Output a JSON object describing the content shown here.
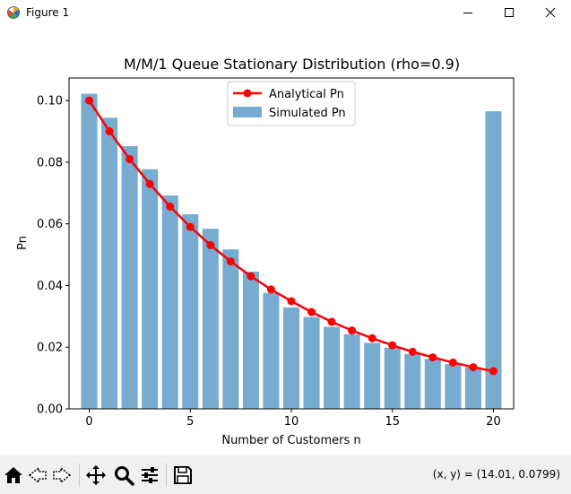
{
  "window": {
    "title": "Figure 1",
    "icons": [
      "matplotlib-icon",
      "minimize-icon",
      "maximize-icon",
      "close-icon"
    ]
  },
  "chart_data": {
    "type": "bar",
    "title": "M/M/1 Queue Stationary Distribution (rho=0.9)",
    "xlabel": "Number of Customers n",
    "ylabel": "Pn",
    "xlim": [
      -1,
      21
    ],
    "ylim": [
      0,
      0.1073
    ],
    "x_ticks": [
      0,
      5,
      10,
      15,
      20
    ],
    "x_tick_labels": [
      "0",
      "5",
      "10",
      "15",
      "20"
    ],
    "y_ticks": [
      0,
      0.02,
      0.04,
      0.06,
      0.08,
      0.1
    ],
    "y_tick_labels": [
      "0.00",
      "0.02",
      "0.04",
      "0.06",
      "0.08",
      "0.10"
    ],
    "grid": false,
    "legend_placement": "top-center",
    "x": [
      0,
      1,
      2,
      3,
      4,
      5,
      6,
      7,
      8,
      9,
      10,
      11,
      12,
      13,
      14,
      15,
      16,
      17,
      18,
      19,
      20
    ],
    "series": [
      {
        "name": "Analytical Pn",
        "kind": "line",
        "color": "#ff0000",
        "values": [
          0.1,
          0.09,
          0.081,
          0.0729,
          0.0656,
          0.059,
          0.0531,
          0.0478,
          0.043,
          0.0387,
          0.0349,
          0.0314,
          0.0282,
          0.0254,
          0.0229,
          0.0206,
          0.0185,
          0.0167,
          0.015,
          0.0135,
          0.0122
        ]
      },
      {
        "name": "Simulated Pn",
        "kind": "bar",
        "color": "#77abd0",
        "values": [
          0.1022,
          0.0944,
          0.0852,
          0.0777,
          0.0692,
          0.0631,
          0.0584,
          0.0517,
          0.0445,
          0.0376,
          0.0329,
          0.0298,
          0.0266,
          0.0242,
          0.0214,
          0.0198,
          0.0178,
          0.0162,
          0.0145,
          0.0135,
          0.0965
        ]
      }
    ]
  },
  "toolbar": {
    "items": [
      "home-icon",
      "back-icon",
      "forward-icon",
      "pan-icon",
      "zoom-icon",
      "configure-subplots-icon",
      "save-icon"
    ],
    "coords_text": "(x, y) = (14.01, 0.0799)"
  }
}
